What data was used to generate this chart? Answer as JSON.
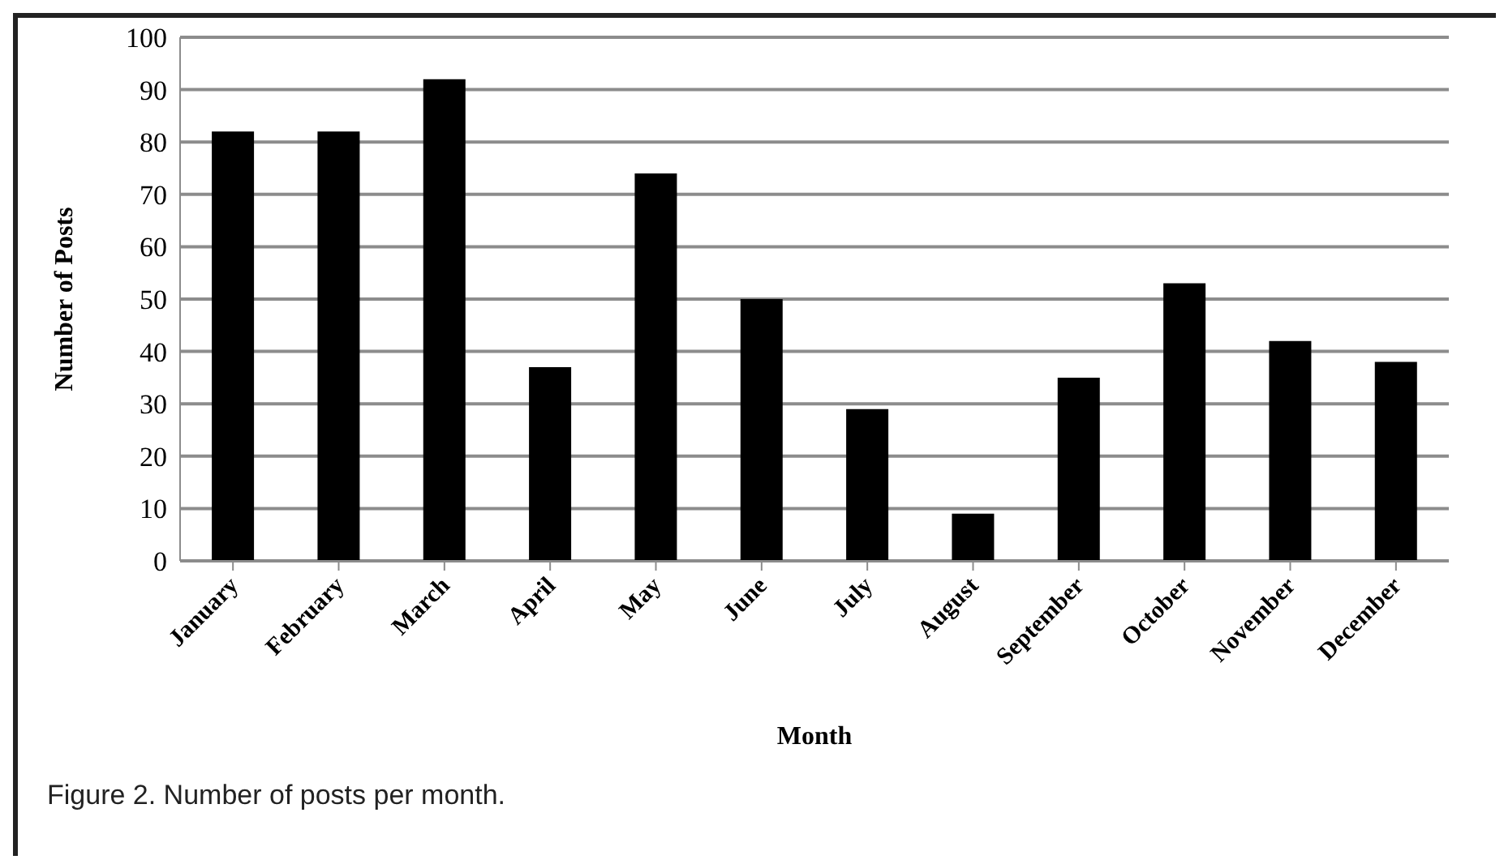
{
  "chart_data": {
    "type": "bar",
    "xlabel": "Month",
    "ylabel": "Number of Posts",
    "categories": [
      "January",
      "February",
      "March",
      "April",
      "May",
      "June",
      "July",
      "August",
      "September",
      "October",
      "November",
      "December"
    ],
    "values": [
      82,
      82,
      92,
      37,
      74,
      50,
      29,
      9,
      35,
      53,
      42,
      38
    ],
    "color": "#000000",
    "ylim": [
      0,
      100
    ],
    "yticks": [
      0,
      10,
      20,
      30,
      40,
      50,
      60,
      70,
      80,
      90,
      100
    ],
    "grid": "y",
    "annotations": [
      "Figure 2. Number of posts per month."
    ]
  }
}
